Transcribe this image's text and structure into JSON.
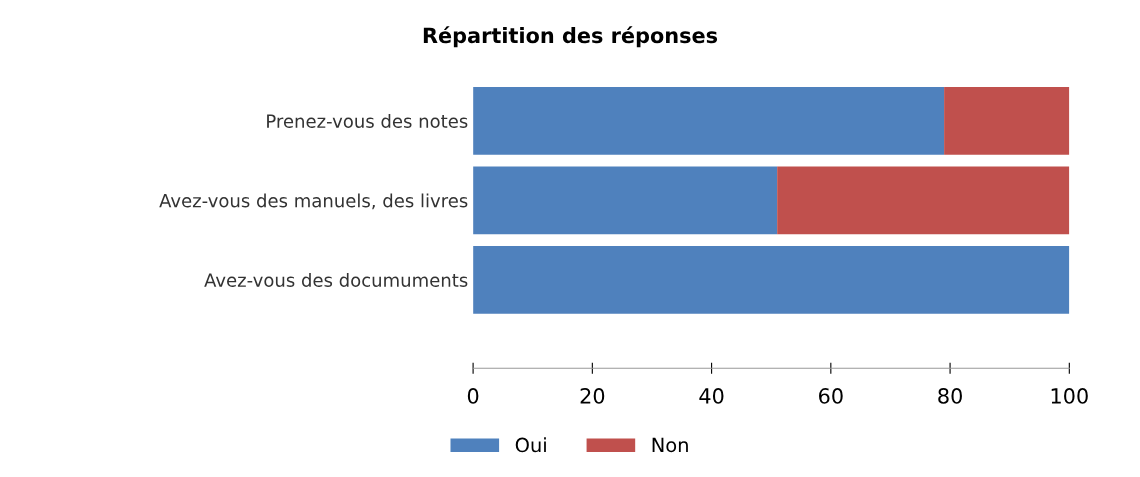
{
  "chart_data": {
    "type": "bar",
    "orientation": "horizontal",
    "stacked": true,
    "title": "Répartition des réponses",
    "categories": [
      "Prenez-vous des notes",
      "Avez-vous des manuels, des livres",
      "Avez-vous des documuments"
    ],
    "series": [
      {
        "name": "Oui",
        "color": "#4f81bd",
        "values": [
          79,
          51,
          100
        ]
      },
      {
        "name": "Non",
        "color": "#c0504d",
        "values": [
          21,
          49,
          null
        ]
      }
    ],
    "xlim": [
      0,
      100
    ],
    "xticks": [
      0,
      20,
      40,
      60,
      80,
      100
    ],
    "legend": "bottom"
  }
}
